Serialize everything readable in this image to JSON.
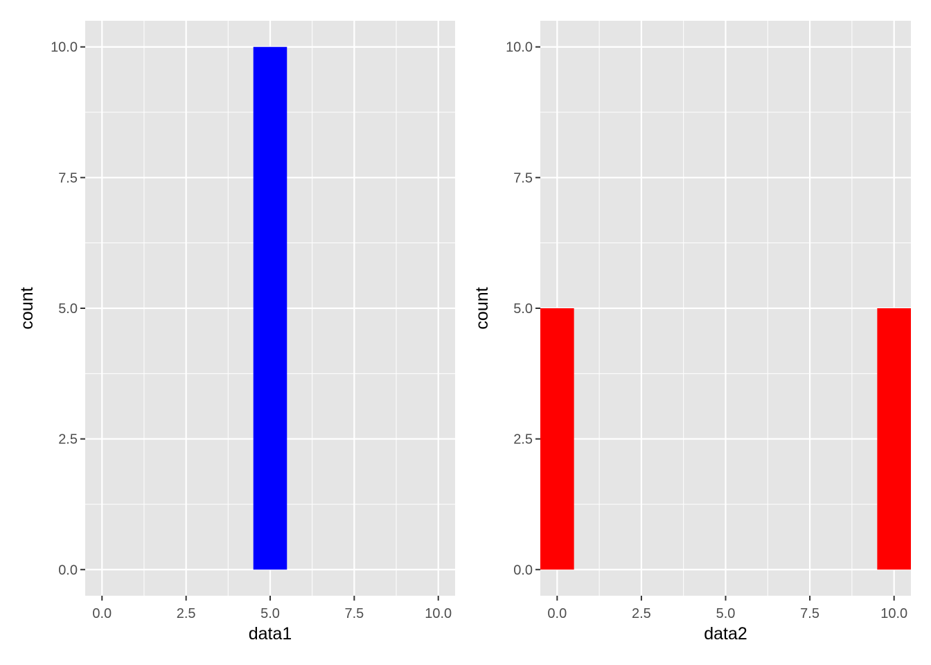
{
  "chart_data": [
    {
      "type": "bar",
      "title": "",
      "xlabel": "data1",
      "ylabel": "count",
      "xlim": [
        -0.5,
        10.5
      ],
      "ylim": [
        -0.5,
        10.5
      ],
      "x_ticks": [
        "0.0",
        "2.5",
        "5.0",
        "7.5",
        "10.0"
      ],
      "y_ticks": [
        "0.0",
        "2.5",
        "5.0",
        "7.5",
        "10.0"
      ],
      "grid": true,
      "bar_width": 1,
      "bars": [
        {
          "x": 5,
          "count": 10
        }
      ],
      "fill_color": "#0000ff"
    },
    {
      "type": "bar",
      "title": "",
      "xlabel": "data2",
      "ylabel": "count",
      "xlim": [
        -0.5,
        10.5
      ],
      "ylim": [
        -0.5,
        10.5
      ],
      "x_ticks": [
        "0.0",
        "2.5",
        "5.0",
        "7.5",
        "10.0"
      ],
      "y_ticks": [
        "0.0",
        "2.5",
        "5.0",
        "7.5",
        "10.0"
      ],
      "grid": true,
      "bar_width": 1,
      "bars": [
        {
          "x": 0,
          "count": 5
        },
        {
          "x": 10,
          "count": 5
        }
      ],
      "fill_color": "#ff0000"
    }
  ],
  "style": {
    "panel_background": "#e5e5e5",
    "grid_color": "#ffffff",
    "tick_color": "#333333"
  }
}
